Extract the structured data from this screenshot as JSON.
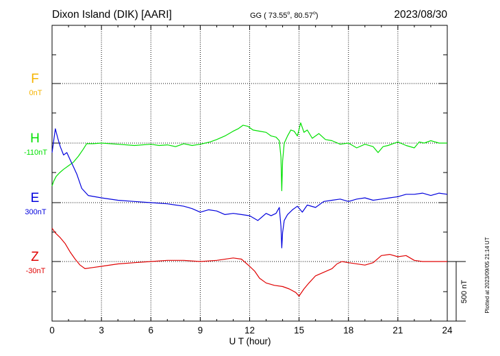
{
  "header": {
    "station": "Dixon Island (DIK)  [AARI]",
    "coords": "GG ( 73.55",
    "coords_mid": ",  80.57",
    "coords_end": ")",
    "degree": "o",
    "date": "2023/08/30"
  },
  "plotted_note": "Plotted at 2023/09/05 21:14 UT",
  "chart_data": {
    "type": "line",
    "xlabel": "U T (hour)",
    "xlim": [
      0,
      24
    ],
    "xticks": [
      0,
      3,
      6,
      9,
      12,
      15,
      18,
      21,
      24
    ],
    "tick_labels": [
      "0",
      "3",
      "6",
      "9",
      "12",
      "15",
      "18",
      "21",
      "24"
    ],
    "grid": true,
    "scale_bar": {
      "label": "500 nT",
      "value_nT": 500
    },
    "series": [
      {
        "name": "F",
        "baseline": "0nT",
        "color": "#f5b300",
        "x": [],
        "y": []
      },
      {
        "name": "H",
        "baseline": "-110nT",
        "color": "#00e000",
        "x": [
          0,
          0.1,
          0.25,
          0.45,
          0.7,
          1.0,
          1.3,
          1.6,
          1.9,
          2.1,
          2.5,
          3,
          4,
          5,
          6,
          6.5,
          7,
          7.5,
          8,
          8.5,
          9,
          9.3,
          9.6,
          10,
          10.5,
          11,
          11.3,
          11.6,
          11.9,
          12.2,
          12.6,
          13,
          13.3,
          13.6,
          13.8,
          13.9,
          13.95,
          14.0,
          14.1,
          14.3,
          14.5,
          14.7,
          14.9,
          15.1,
          15.3,
          15.5,
          15.8,
          16.2,
          16.6,
          17,
          17.5,
          18,
          18.5,
          19,
          19.5,
          19.8,
          20.1,
          20.4,
          21,
          21.5,
          22,
          22.3,
          22.6,
          23,
          23.5,
          24
        ],
        "y": [
          -360,
          -320,
          -280,
          -250,
          -220,
          -190,
          -160,
          -110,
          -50,
          -5,
          -5,
          0,
          -10,
          -20,
          -10,
          -20,
          -15,
          -30,
          -5,
          -20,
          -10,
          0,
          10,
          30,
          60,
          100,
          120,
          150,
          140,
          110,
          100,
          90,
          60,
          50,
          20,
          -120,
          -400,
          -150,
          0,
          60,
          110,
          100,
          60,
          170,
          90,
          110,
          40,
          80,
          30,
          20,
          -10,
          0,
          -40,
          -10,
          -30,
          -80,
          -30,
          -20,
          10,
          -20,
          -40,
          10,
          0,
          20,
          0,
          0
        ]
      },
      {
        "name": "E",
        "baseline": "300nT",
        "color": "#0000dd",
        "x": [
          0,
          0.1,
          0.2,
          0.35,
          0.5,
          0.7,
          0.9,
          1.1,
          1.3,
          1.5,
          1.8,
          2.2,
          3,
          4,
          5,
          6,
          7,
          8,
          8.5,
          9,
          9.5,
          10,
          10.5,
          11,
          11.5,
          12,
          12.5,
          13,
          13.3,
          13.6,
          13.8,
          13.9,
          13.95,
          14.0,
          14.1,
          14.3,
          14.6,
          14.9,
          15.2,
          15.5,
          16,
          16.5,
          17,
          17.5,
          18,
          18.5,
          19,
          19.5,
          20,
          20.5,
          21,
          21.5,
          22,
          22.5,
          23,
          23.5,
          24
        ],
        "y": [
          420,
          520,
          620,
          540,
          470,
          400,
          420,
          360,
          300,
          240,
          120,
          60,
          40,
          20,
          10,
          0,
          -10,
          -30,
          -50,
          -80,
          -60,
          -70,
          -100,
          -90,
          -100,
          -110,
          -150,
          -90,
          -110,
          -90,
          -40,
          -200,
          -380,
          -250,
          -150,
          -100,
          -60,
          -30,
          -80,
          -20,
          -40,
          10,
          20,
          30,
          10,
          30,
          40,
          20,
          30,
          40,
          50,
          70,
          70,
          80,
          60,
          80,
          70
        ]
      },
      {
        "name": "Z",
        "baseline": "-30nT",
        "color": "#e00000",
        "x": [
          0,
          0.2,
          0.5,
          0.8,
          1.1,
          1.4,
          1.7,
          2.0,
          2.5,
          3,
          4,
          5,
          6,
          7,
          8,
          9,
          10,
          11,
          11.5,
          12,
          12.3,
          12.6,
          13,
          13.5,
          14,
          14.4,
          14.8,
          15.0,
          15.3,
          15.6,
          16,
          16.5,
          17,
          17.3,
          17.6,
          18,
          19,
          19.5,
          20,
          20.5,
          21,
          21.5,
          22,
          22.5,
          23,
          24
        ],
        "y": [
          280,
          240,
          200,
          150,
          80,
          20,
          -30,
          -60,
          -50,
          -40,
          -20,
          -10,
          0,
          10,
          10,
          0,
          10,
          30,
          20,
          -40,
          -80,
          -140,
          -180,
          -200,
          -210,
          -230,
          -260,
          -290,
          -230,
          -180,
          -120,
          -90,
          -60,
          -20,
          0,
          -10,
          -30,
          -10,
          50,
          60,
          40,
          50,
          10,
          0,
          0,
          0
        ]
      }
    ]
  }
}
